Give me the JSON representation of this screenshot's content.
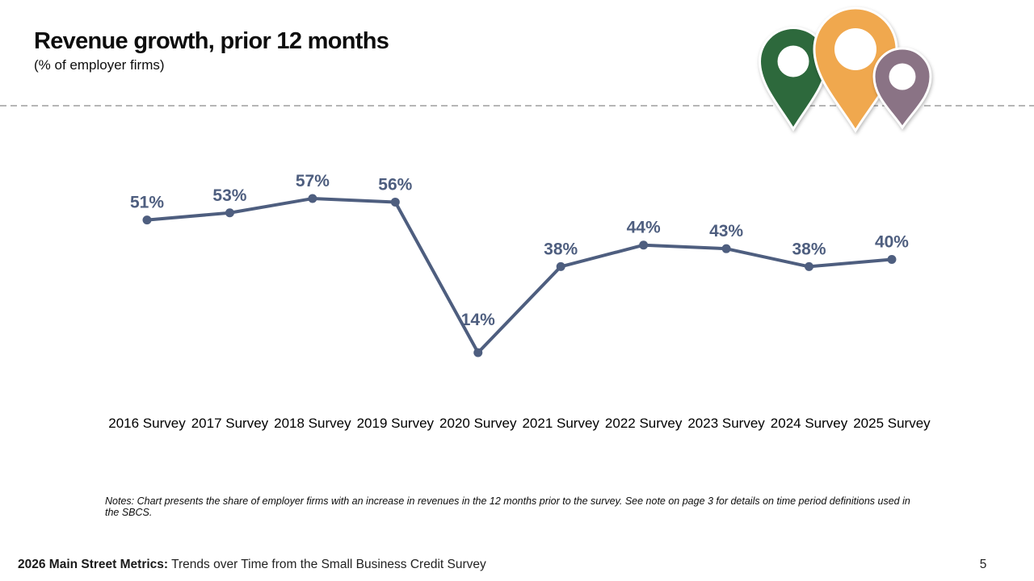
{
  "chart_data": {
    "type": "line",
    "title": "Revenue growth, prior 12 months",
    "subtitle": "(% of employer firms)",
    "categories": [
      "2016 Survey",
      "2017 Survey",
      "2018 Survey",
      "2019 Survey",
      "2020 Survey",
      "2021 Survey",
      "2022 Survey",
      "2023 Survey",
      "2024 Survey",
      "2025 Survey"
    ],
    "values": [
      51,
      53,
      57,
      56,
      14,
      38,
      44,
      43,
      38,
      40
    ],
    "data_labels": [
      "51%",
      "53%",
      "57%",
      "56%",
      "14%",
      "38%",
      "44%",
      "43%",
      "38%",
      "40%"
    ],
    "xlabel": "",
    "ylabel": "",
    "ylim": [
      0,
      65
    ],
    "grid": false,
    "legend": false,
    "line_color": "#4e5e7f",
    "marker": "circle",
    "label_color": "#4e5e7f",
    "axis_text_color": "#000000"
  },
  "divider": {
    "color": "#9e9e9e",
    "style": "dashed"
  },
  "logo": {
    "pins": [
      {
        "name": "green-map-pin",
        "color": "#2d693c"
      },
      {
        "name": "orange-map-pin",
        "color": "#f0a84e"
      },
      {
        "name": "purple-map-pin",
        "color": "#8a7385"
      }
    ]
  },
  "notes": {
    "text": "Notes: Chart presents the share of employer firms with an increase in revenues in the 12 months prior to the survey. See note on page 3 for details on time period definitions used in the SBCS."
  },
  "footer": {
    "bold_text": "2026 Main Street Metrics:",
    "regular_text": "Trends over Time from the Small Business Credit Survey",
    "page_number": "5"
  }
}
